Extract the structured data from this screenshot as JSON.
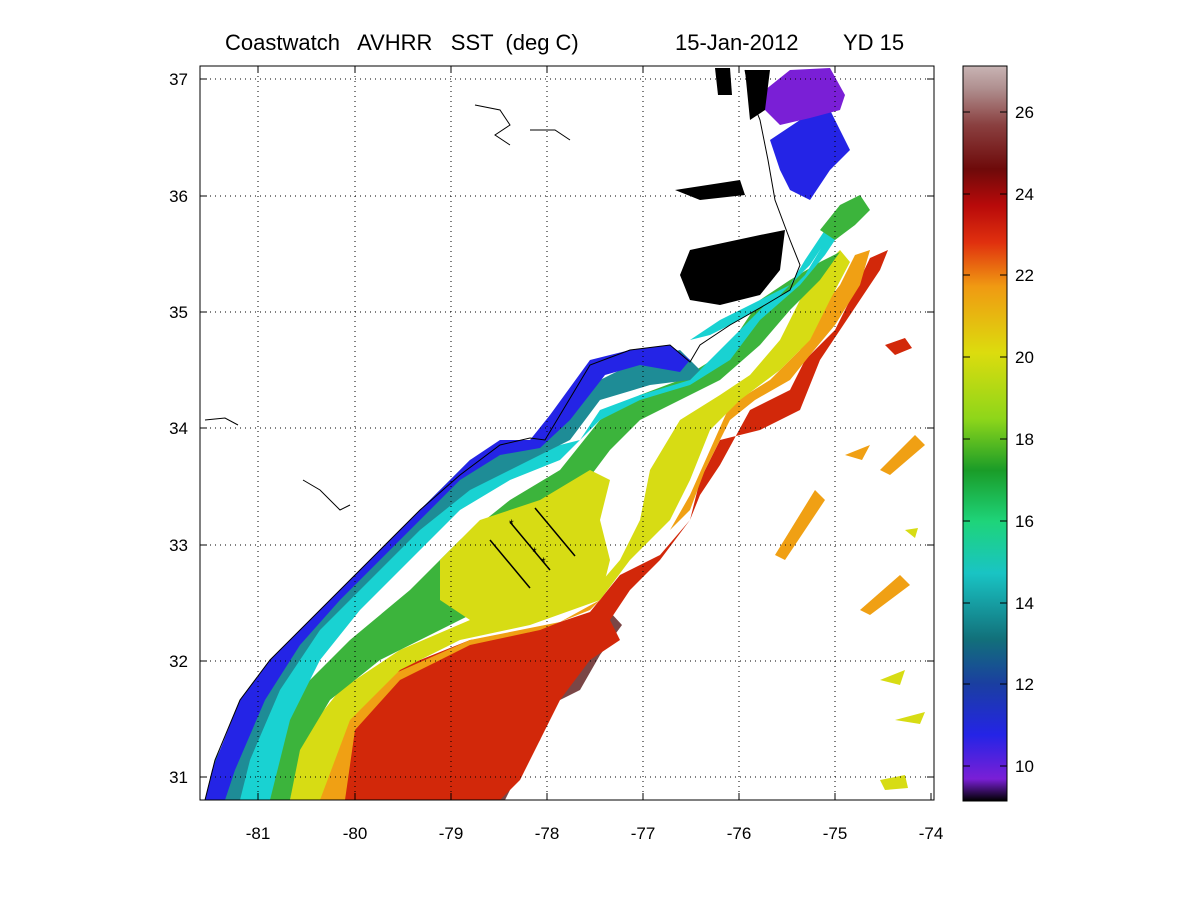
{
  "title": {
    "product": "Coastwatch   AVHRR   SST  (deg C)",
    "date": "15-Jan-2012",
    "yearday": "YD 15"
  },
  "map": {
    "lon_range": [
      -81.6,
      -74
    ],
    "lat_range": [
      30.8,
      37.1
    ],
    "lon_ticks": [
      "-81",
      "-80",
      "-79",
      "-78",
      "-77",
      "-76",
      "-75",
      "-74"
    ],
    "lat_ticks": [
      "37",
      "36",
      "35",
      "34",
      "33",
      "32",
      "31"
    ],
    "grid": "dotted",
    "land_color": "#ffffff",
    "coastline_color": "#000000"
  },
  "colorbar": {
    "range": [
      9,
      27
    ],
    "ticks": [
      "26",
      "24",
      "22",
      "20",
      "18",
      "16",
      "14",
      "12",
      "10"
    ],
    "colors": [
      "#000000",
      "#7a1fd6",
      "#2424e6",
      "#1a3fa0",
      "#12707a",
      "#19c4c4",
      "#1ed47a",
      "#1a9c28",
      "#8ed61a",
      "#dcdc0e",
      "#f09a12",
      "#e0300e",
      "#b80a0a",
      "#6e0a0a",
      "#8a4040",
      "#b09090",
      "#c8b4b4"
    ]
  },
  "sst_colors": {
    "cold_purple": "#7a1fd6",
    "blue": "#2424e6",
    "teal": "#1e8c96",
    "cyan": "#19d2d2",
    "green": "#3cb43c",
    "yellow": "#d7dc14",
    "orange": "#f0a014",
    "red": "#d2280a",
    "gulf_stream": "#7a4646"
  }
}
